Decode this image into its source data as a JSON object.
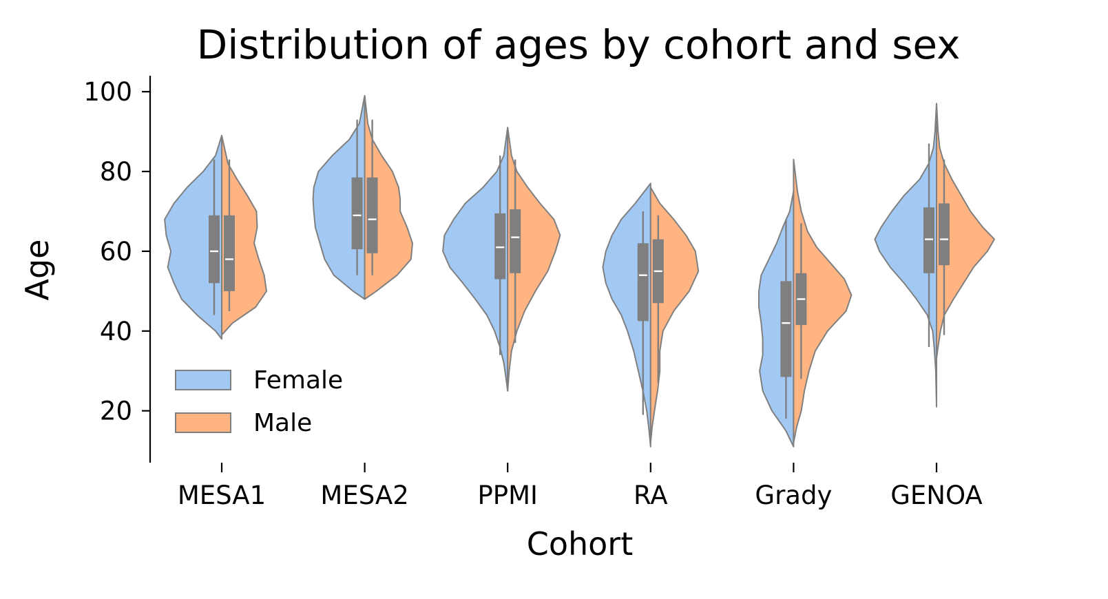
{
  "chart_data": {
    "type": "violin",
    "title": "Distribution of ages by cohort and sex",
    "xlabel": "Cohort",
    "ylabel": "Age",
    "ylim": [
      7,
      104
    ],
    "yticks": [
      20,
      40,
      60,
      80,
      100
    ],
    "categories": [
      "MESA1",
      "MESA2",
      "PPMI",
      "RA",
      "Grady",
      "GENOA"
    ],
    "legend": {
      "position": "lower-left"
    },
    "series": [
      {
        "name": "Female",
        "color": "#a1c9f4",
        "stats": [
          {
            "min": 44,
            "q1": 52,
            "median": 60,
            "q3": 69,
            "max": 83,
            "kde_min": 38,
            "kde_max": 89
          },
          {
            "min": 54,
            "q1": 60.5,
            "median": 69,
            "q3": 78.5,
            "max": 93,
            "kde_min": 48,
            "kde_max": 99
          },
          {
            "min": 34,
            "q1": 53,
            "median": 61,
            "q3": 69.5,
            "max": 84,
            "kde_min": 25,
            "kde_max": 91
          },
          {
            "min": 19,
            "q1": 42.5,
            "median": 54,
            "q3": 62,
            "max": 70,
            "kde_min": 11,
            "kde_max": 77
          },
          {
            "min": 18,
            "q1": 28.5,
            "median": 42,
            "q3": 52.5,
            "max": 68,
            "kde_min": 11,
            "kde_max": 75
          },
          {
            "min": 36,
            "q1": 54.5,
            "median": 63,
            "q3": 71,
            "max": 87,
            "kde_min": 21,
            "kde_max": 97
          }
        ],
        "density": [
          [
            [
              38,
              0
            ],
            [
              40,
              0.08
            ],
            [
              44,
              0.32
            ],
            [
              48,
              0.52
            ],
            [
              52,
              0.62
            ],
            [
              56,
              0.7
            ],
            [
              60,
              0.66
            ],
            [
              64,
              0.72
            ],
            [
              68,
              0.74
            ],
            [
              72,
              0.62
            ],
            [
              76,
              0.45
            ],
            [
              80,
              0.24
            ],
            [
              84,
              0.08
            ],
            [
              89,
              0
            ]
          ],
          [
            [
              48,
              0
            ],
            [
              50,
              0.15
            ],
            [
              54,
              0.4
            ],
            [
              58,
              0.52
            ],
            [
              62,
              0.58
            ],
            [
              66,
              0.64
            ],
            [
              70,
              0.66
            ],
            [
              73,
              0.67
            ],
            [
              76,
              0.66
            ],
            [
              80,
              0.6
            ],
            [
              84,
              0.42
            ],
            [
              88,
              0.2
            ],
            [
              92,
              0.07
            ],
            [
              99,
              0
            ]
          ],
          [
            [
              25,
              0
            ],
            [
              28,
              0.02
            ],
            [
              32,
              0.05
            ],
            [
              36,
              0.1
            ],
            [
              40,
              0.17
            ],
            [
              44,
              0.27
            ],
            [
              48,
              0.42
            ],
            [
              52,
              0.58
            ],
            [
              56,
              0.75
            ],
            [
              60,
              0.84
            ],
            [
              64,
              0.82
            ],
            [
              68,
              0.7
            ],
            [
              72,
              0.55
            ],
            [
              76,
              0.32
            ],
            [
              80,
              0.14
            ],
            [
              84,
              0.05
            ],
            [
              91,
              0
            ]
          ],
          [
            [
              11,
              0
            ],
            [
              15,
              0.02
            ],
            [
              20,
              0.05
            ],
            [
              25,
              0.1
            ],
            [
              30,
              0.16
            ],
            [
              35,
              0.22
            ],
            [
              40,
              0.3
            ],
            [
              44,
              0.38
            ],
            [
              48,
              0.5
            ],
            [
              52,
              0.58
            ],
            [
              56,
              0.62
            ],
            [
              60,
              0.58
            ],
            [
              64,
              0.5
            ],
            [
              68,
              0.38
            ],
            [
              72,
              0.2
            ],
            [
              77,
              0
            ]
          ],
          [
            [
              11,
              0
            ],
            [
              15,
              0.1
            ],
            [
              20,
              0.28
            ],
            [
              25,
              0.4
            ],
            [
              30,
              0.44
            ],
            [
              34,
              0.4
            ],
            [
              38,
              0.4
            ],
            [
              42,
              0.42
            ],
            [
              46,
              0.45
            ],
            [
              50,
              0.45
            ],
            [
              54,
              0.42
            ],
            [
              58,
              0.32
            ],
            [
              62,
              0.22
            ],
            [
              66,
              0.14
            ],
            [
              70,
              0.05
            ],
            [
              75,
              0
            ]
          ],
          [
            [
              21,
              0
            ],
            [
              30,
              0.01
            ],
            [
              36,
              0.03
            ],
            [
              40,
              0.05
            ],
            [
              44,
              0.12
            ],
            [
              48,
              0.26
            ],
            [
              52,
              0.42
            ],
            [
              56,
              0.6
            ],
            [
              60,
              0.74
            ],
            [
              63,
              0.8
            ],
            [
              66,
              0.72
            ],
            [
              70,
              0.58
            ],
            [
              74,
              0.42
            ],
            [
              78,
              0.22
            ],
            [
              82,
              0.1
            ],
            [
              86,
              0.04
            ],
            [
              90,
              0.02
            ],
            [
              97,
              0
            ]
          ]
        ]
      },
      {
        "name": "Male",
        "color": "#ffb482",
        "stats": [
          {
            "min": 45,
            "q1": 50,
            "median": 58,
            "q3": 69,
            "max": 83,
            "kde_min": 39,
            "kde_max": 89
          },
          {
            "min": 54,
            "q1": 59.5,
            "median": 68,
            "q3": 78.5,
            "max": 93,
            "kde_min": 48,
            "kde_max": 99
          },
          {
            "min": 37,
            "q1": 54.5,
            "median": 63.5,
            "q3": 70.5,
            "max": 83,
            "kde_min": 25,
            "kde_max": 91
          },
          {
            "min": 27,
            "q1": 47,
            "median": 55,
            "q3": 63,
            "max": 69,
            "kde_min": 12,
            "kde_max": 76
          },
          {
            "min": 28,
            "q1": 41.5,
            "median": 48,
            "q3": 54.5,
            "max": 67,
            "kde_min": 12,
            "kde_max": 83
          },
          {
            "min": 39,
            "q1": 56.5,
            "median": 63,
            "q3": 72,
            "max": 83,
            "kde_min": 33,
            "kde_max": 97
          }
        ],
        "density": [
          [
            [
              39,
              0
            ],
            [
              42,
              0.14
            ],
            [
              46,
              0.44
            ],
            [
              50,
              0.58
            ],
            [
              54,
              0.55
            ],
            [
              58,
              0.48
            ],
            [
              62,
              0.42
            ],
            [
              66,
              0.46
            ],
            [
              70,
              0.45
            ],
            [
              74,
              0.33
            ],
            [
              78,
              0.2
            ],
            [
              82,
              0.08
            ],
            [
              89,
              0
            ]
          ],
          [
            [
              48,
              0
            ],
            [
              50,
              0.15
            ],
            [
              54,
              0.42
            ],
            [
              58,
              0.6
            ],
            [
              62,
              0.62
            ],
            [
              66,
              0.55
            ],
            [
              70,
              0.46
            ],
            [
              73,
              0.46
            ],
            [
              76,
              0.44
            ],
            [
              80,
              0.36
            ],
            [
              84,
              0.22
            ],
            [
              88,
              0.1
            ],
            [
              92,
              0.04
            ],
            [
              99,
              0
            ]
          ],
          [
            [
              25,
              0
            ],
            [
              30,
              0.02
            ],
            [
              35,
              0.05
            ],
            [
              40,
              0.12
            ],
            [
              45,
              0.22
            ],
            [
              50,
              0.36
            ],
            [
              55,
              0.52
            ],
            [
              60,
              0.62
            ],
            [
              64,
              0.68
            ],
            [
              68,
              0.6
            ],
            [
              72,
              0.42
            ],
            [
              76,
              0.26
            ],
            [
              80,
              0.12
            ],
            [
              84,
              0.05
            ],
            [
              91,
              0
            ]
          ],
          [
            [
              12,
              0
            ],
            [
              16,
              0.02
            ],
            [
              20,
              0.05
            ],
            [
              25,
              0.09
            ],
            [
              30,
              0.12
            ],
            [
              35,
              0.12
            ],
            [
              40,
              0.16
            ],
            [
              45,
              0.3
            ],
            [
              50,
              0.5
            ],
            [
              55,
              0.62
            ],
            [
              60,
              0.58
            ],
            [
              64,
              0.46
            ],
            [
              68,
              0.3
            ],
            [
              72,
              0.12
            ],
            [
              76,
              0
            ]
          ],
          [
            [
              12,
              0
            ],
            [
              16,
              0.04
            ],
            [
              20,
              0.1
            ],
            [
              25,
              0.14
            ],
            [
              30,
              0.2
            ],
            [
              35,
              0.28
            ],
            [
              40,
              0.44
            ],
            [
              45,
              0.68
            ],
            [
              49,
              0.75
            ],
            [
              53,
              0.66
            ],
            [
              57,
              0.48
            ],
            [
              61,
              0.3
            ],
            [
              65,
              0.18
            ],
            [
              70,
              0.1
            ],
            [
              75,
              0.05
            ],
            [
              83,
              0
            ]
          ],
          [
            [
              33,
              0
            ],
            [
              36,
              0.02
            ],
            [
              40,
              0.05
            ],
            [
              44,
              0.1
            ],
            [
              48,
              0.22
            ],
            [
              52,
              0.35
            ],
            [
              56,
              0.48
            ],
            [
              60,
              0.66
            ],
            [
              63,
              0.75
            ],
            [
              66,
              0.6
            ],
            [
              70,
              0.44
            ],
            [
              74,
              0.32
            ],
            [
              78,
              0.2
            ],
            [
              82,
              0.1
            ],
            [
              86,
              0.04
            ],
            [
              90,
              0.02
            ],
            [
              97,
              0
            ]
          ]
        ]
      }
    ]
  }
}
